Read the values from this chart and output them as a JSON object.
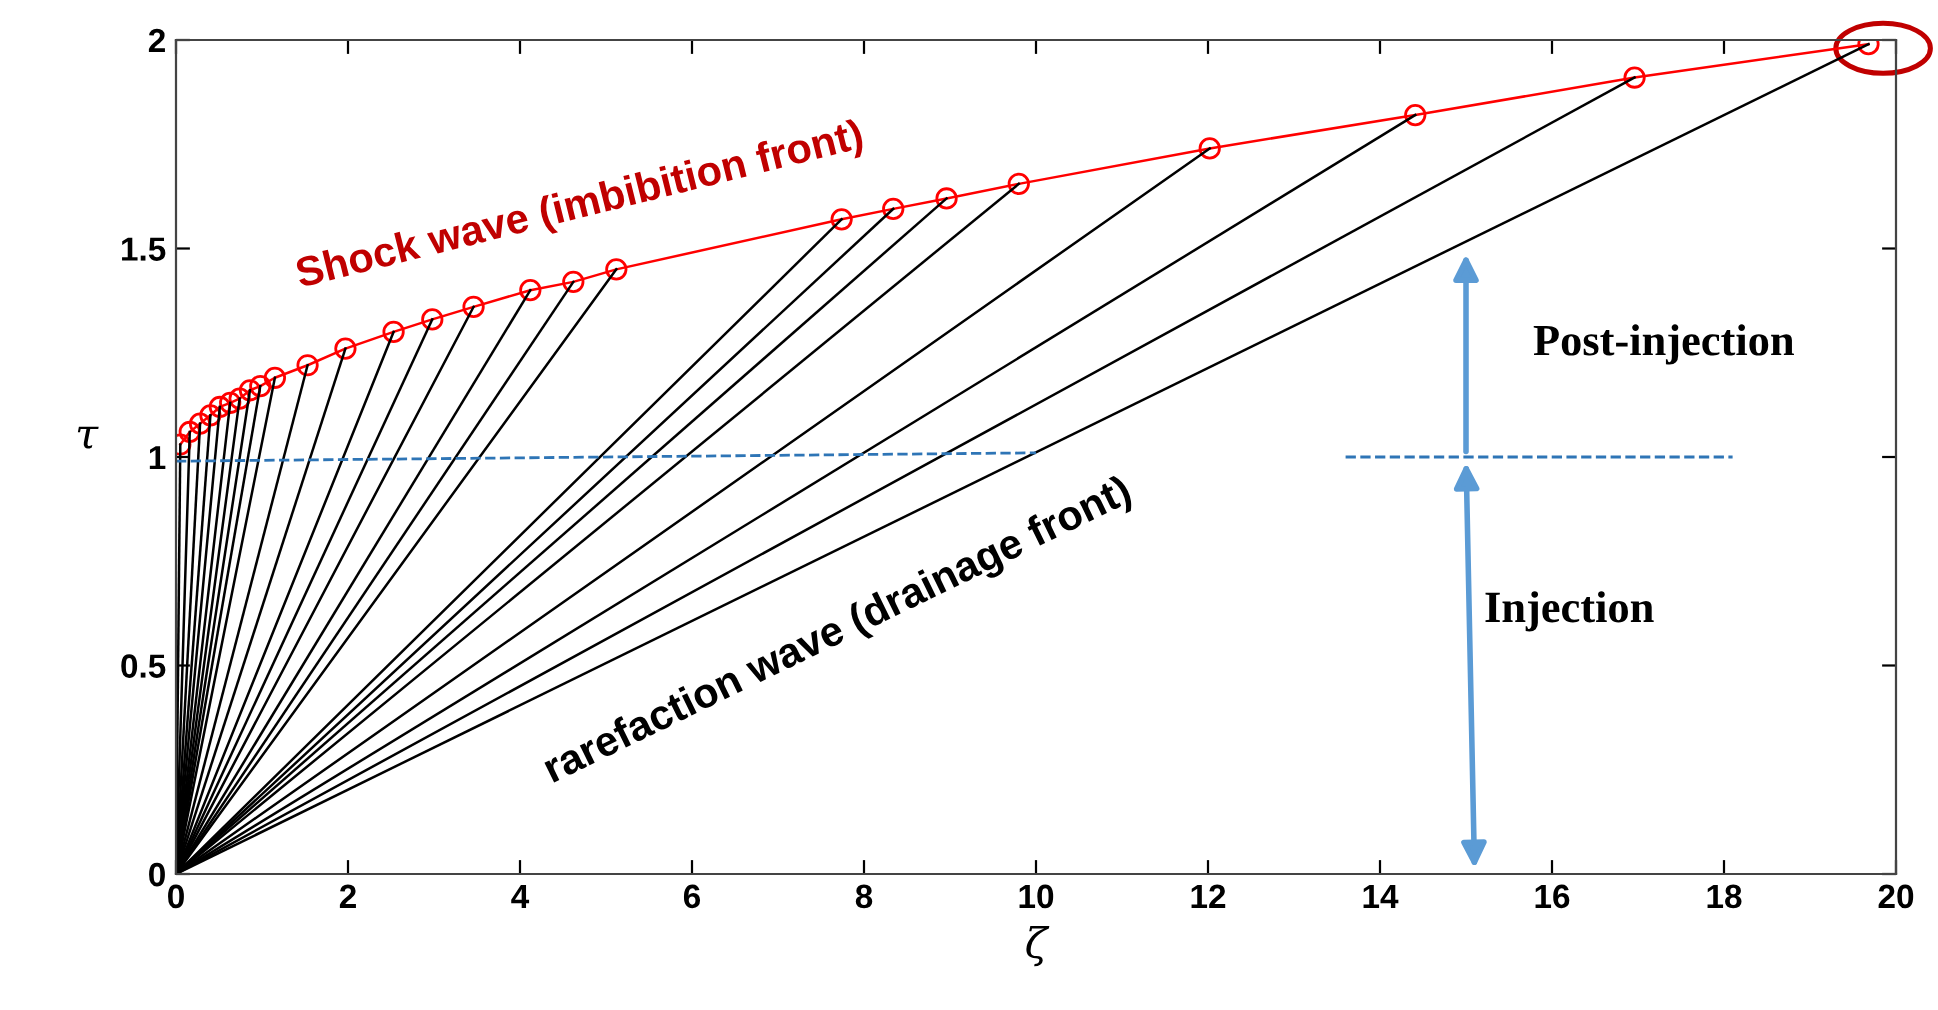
{
  "chart_data": {
    "type": "line",
    "xlabel": "ζ",
    "ylabel": "τ",
    "xlim": [
      0,
      20
    ],
    "ylim": [
      0,
      2
    ],
    "xticks": [
      0,
      2,
      4,
      6,
      8,
      10,
      12,
      14,
      16,
      18,
      20
    ],
    "yticks": [
      0,
      0.5,
      1,
      1.5,
      2
    ],
    "grid": false,
    "legend": false,
    "annotations": [
      "Shock wave (imbibition front)",
      "rarefaction wave (drainage front)",
      "Post-injection",
      "Injection"
    ],
    "series": [
      {
        "color": "#ff0000",
        "marker": "circle",
        "line_style": "solid",
        "x": [
          0.05,
          0.16,
          0.28,
          0.4,
          0.51,
          0.63,
          0.74,
          0.86,
          0.98,
          1.15,
          1.53,
          1.97,
          2.53,
          2.98,
          3.46,
          4.12,
          4.62,
          5.12,
          7.74,
          8.34,
          8.96,
          9.8,
          12.02,
          14.41,
          16.96,
          19.68
        ],
        "values": [
          1.03,
          1.06,
          1.08,
          1.1,
          1.12,
          1.13,
          1.14,
          1.16,
          1.17,
          1.19,
          1.22,
          1.26,
          1.3,
          1.33,
          1.36,
          1.4,
          1.42,
          1.45,
          1.57,
          1.595,
          1.62,
          1.655,
          1.74,
          1.82,
          1.91,
          1.99
        ]
      },
      {
        "color": "#000000",
        "x": [
          0,
          0.05
        ],
        "values": [
          0,
          1.03
        ]
      },
      {
        "color": "#000000",
        "x": [
          0,
          0.16
        ],
        "values": [
          0,
          1.06
        ]
      },
      {
        "color": "#000000",
        "x": [
          0,
          0.28
        ],
        "values": [
          0,
          1.08
        ]
      },
      {
        "color": "#000000",
        "x": [
          0,
          0.4
        ],
        "values": [
          0,
          1.1
        ]
      },
      {
        "color": "#000000",
        "x": [
          0,
          0.51
        ],
        "values": [
          0,
          1.12
        ]
      },
      {
        "color": "#000000",
        "x": [
          0,
          0.63
        ],
        "values": [
          0,
          1.13
        ]
      },
      {
        "color": "#000000",
        "x": [
          0,
          0.74
        ],
        "values": [
          0,
          1.14
        ]
      },
      {
        "color": "#000000",
        "x": [
          0,
          0.86
        ],
        "values": [
          0,
          1.16
        ]
      },
      {
        "color": "#000000",
        "x": [
          0,
          0.98
        ],
        "values": [
          0,
          1.17
        ]
      },
      {
        "color": "#000000",
        "x": [
          0,
          1.15
        ],
        "values": [
          0,
          1.19
        ]
      },
      {
        "color": "#000000",
        "x": [
          0,
          1.53
        ],
        "values": [
          0,
          1.22
        ]
      },
      {
        "color": "#000000",
        "x": [
          0,
          1.97
        ],
        "values": [
          0,
          1.26
        ]
      },
      {
        "color": "#000000",
        "x": [
          0,
          2.53
        ],
        "values": [
          0,
          1.3
        ]
      },
      {
        "color": "#000000",
        "x": [
          0,
          2.98
        ],
        "values": [
          0,
          1.33
        ]
      },
      {
        "color": "#000000",
        "x": [
          0,
          3.46
        ],
        "values": [
          0,
          1.36
        ]
      },
      {
        "color": "#000000",
        "x": [
          0,
          4.12
        ],
        "values": [
          0,
          1.4
        ]
      },
      {
        "color": "#000000",
        "x": [
          0,
          4.62
        ],
        "values": [
          0,
          1.42
        ]
      },
      {
        "color": "#000000",
        "x": [
          0,
          5.12
        ],
        "values": [
          0,
          1.45
        ]
      },
      {
        "color": "#000000",
        "x": [
          0,
          7.74
        ],
        "values": [
          0,
          1.57
        ]
      },
      {
        "color": "#000000",
        "x": [
          0,
          8.34
        ],
        "values": [
          0,
          1.595
        ]
      },
      {
        "color": "#000000",
        "x": [
          0,
          8.96
        ],
        "values": [
          0,
          1.62
        ]
      },
      {
        "color": "#000000",
        "x": [
          0,
          9.8
        ],
        "values": [
          0,
          1.655
        ]
      },
      {
        "color": "#000000",
        "x": [
          0,
          12.02
        ],
        "values": [
          0,
          1.74
        ]
      },
      {
        "color": "#000000",
        "x": [
          0,
          14.41
        ],
        "values": [
          0,
          1.82
        ]
      },
      {
        "color": "#000000",
        "x": [
          0,
          16.96
        ],
        "values": [
          0,
          1.91
        ]
      },
      {
        "color": "#000000",
        "x": [
          0,
          19.68
        ],
        "values": [
          0,
          1.99
        ]
      },
      {
        "color": "#2e75b6",
        "line_style": "dashed",
        "x": [
          0,
          10
        ],
        "values": [
          0.99,
          1.01
        ]
      },
      {
        "color": "#2e75b6",
        "line_style": "dashed",
        "x": [
          13.6,
          18.1
        ],
        "values": [
          1,
          1
        ]
      }
    ]
  }
}
